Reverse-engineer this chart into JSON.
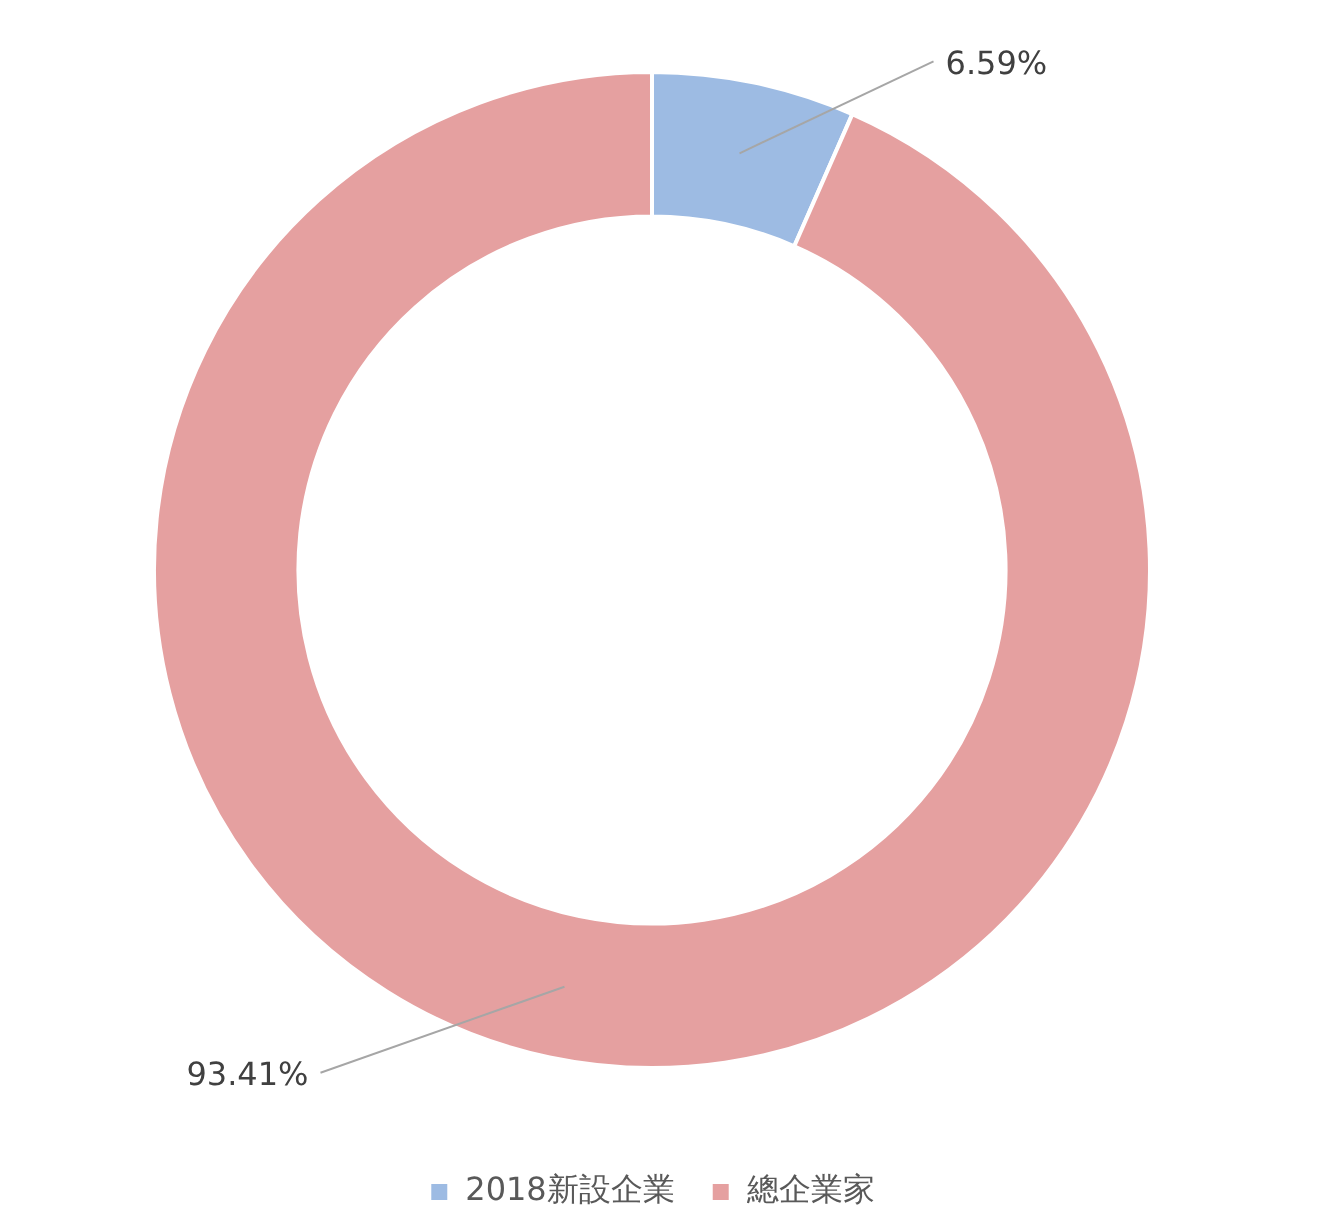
{
  "chart_data": {
    "type": "donut",
    "categories": [
      "2018新設企業",
      "總企業家"
    ],
    "values": [
      6.59,
      93.41
    ],
    "colors": [
      "#9dbbe3",
      "#e5a0a0"
    ],
    "value_labels": [
      "6.59%",
      "93.41%"
    ],
    "legend": "bottom"
  }
}
